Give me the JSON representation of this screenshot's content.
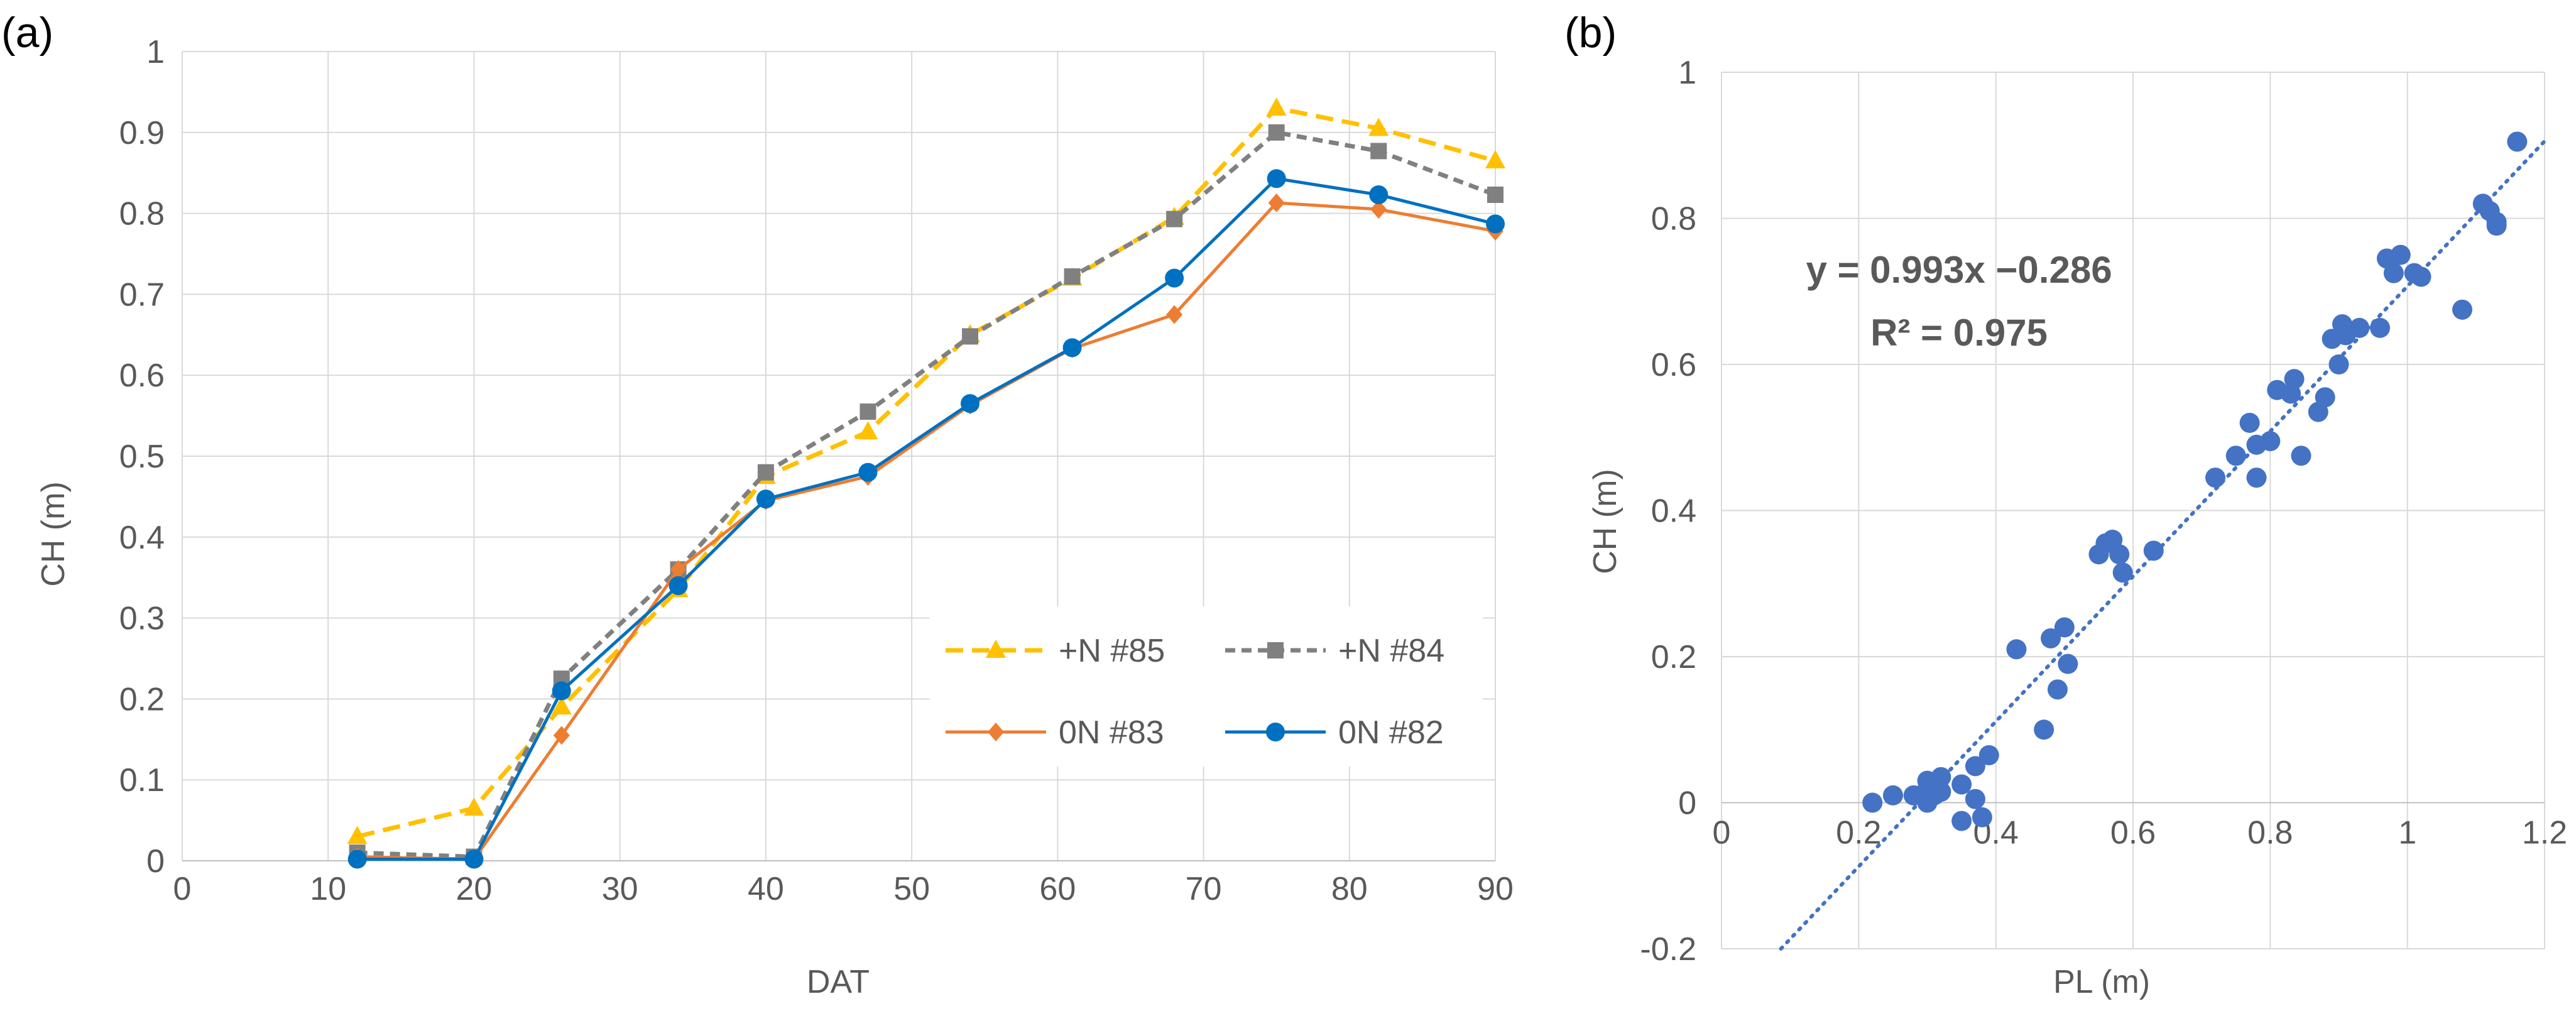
{
  "chart_data": [
    {
      "type": "line",
      "panel_label": "(a)",
      "xlabel": "DAT",
      "ylabel": "CH (m)",
      "xlim": [
        0,
        90
      ],
      "ylim": [
        0,
        1
      ],
      "x_ticks": [
        0,
        10,
        20,
        30,
        40,
        50,
        60,
        70,
        80,
        90
      ],
      "y_ticks": [
        0,
        0.1,
        0.2,
        0.3,
        0.4,
        0.5,
        0.6,
        0.7,
        0.8,
        0.9,
        1
      ],
      "x_tick_labels": [
        "0",
        "10",
        "20",
        "30",
        "40",
        "50",
        "60",
        "70",
        "80",
        "90"
      ],
      "y_tick_labels": [
        "0",
        "0.1",
        "0.2",
        "0.3",
        "0.4",
        "0.5",
        "0.6",
        "0.7",
        "0.8",
        "0.9",
        "1"
      ],
      "grid": true,
      "legend_position": "bottom-right",
      "x": [
        12,
        20,
        26,
        34,
        40,
        47,
        54,
        61,
        68,
        75,
        82,
        90
      ],
      "series": [
        {
          "name": "+N #85",
          "color": "#FFC000",
          "marker": "triangle",
          "dash": "dashed",
          "values": [
            0.03,
            0.065,
            0.19,
            0.335,
            0.475,
            0.53,
            0.65,
            0.72,
            0.795,
            0.93,
            0.905,
            0.865
          ]
        },
        {
          "name": "+N #84",
          "color": "#808080",
          "marker": "square",
          "dash": "dashed",
          "values": [
            0.01,
            0.005,
            0.225,
            0.36,
            0.48,
            0.555,
            0.648,
            0.722,
            0.793,
            0.9,
            0.877,
            0.823
          ]
        },
        {
          "name": "0N #83",
          "color": "#ED7D31",
          "marker": "diamond",
          "dash": "solid",
          "values": [
            0.005,
            0.002,
            0.155,
            0.36,
            0.445,
            0.475,
            0.563,
            0.633,
            0.675,
            0.813,
            0.805,
            0.778
          ]
        },
        {
          "name": "0N #82",
          "color": "#0070C0",
          "marker": "circle",
          "dash": "solid",
          "values": [
            0.002,
            0.002,
            0.21,
            0.34,
            0.447,
            0.48,
            0.565,
            0.634,
            0.72,
            0.843,
            0.823,
            0.787
          ]
        }
      ]
    },
    {
      "type": "scatter",
      "panel_label": "(b)",
      "xlabel": "PL (m)",
      "ylabel": "CH (m)",
      "xlim": [
        0,
        1.2
      ],
      "ylim": [
        -0.2,
        1
      ],
      "x_ticks": [
        0,
        0.2,
        0.4,
        0.6,
        0.8,
        1,
        1.2
      ],
      "y_ticks": [
        -0.2,
        0,
        0.2,
        0.4,
        0.6,
        0.8,
        1
      ],
      "x_tick_labels": [
        "0",
        "0.2",
        "0.4",
        "0.6",
        "0.8",
        "1",
        "1.2"
      ],
      "y_tick_labels": [
        "-0.2",
        "0",
        "0.2",
        "0.4",
        "0.6",
        "0.8",
        "1"
      ],
      "grid": true,
      "marker_color": "#4472C4",
      "trendline": {
        "slope": 0.993,
        "intercept": -0.286,
        "color": "#4472C4",
        "style": "dotted"
      },
      "equation": "y = 0.993x −0.286",
      "r_squared": "R² = 0.975",
      "points": [
        [
          0.22,
          0.0
        ],
        [
          0.25,
          0.01
        ],
        [
          0.28,
          0.01
        ],
        [
          0.29,
          0.01
        ],
        [
          0.3,
          0.0
        ],
        [
          0.3,
          0.03
        ],
        [
          0.31,
          0.01
        ],
        [
          0.31,
          0.02
        ],
        [
          0.32,
          0.035
        ],
        [
          0.32,
          0.015
        ],
        [
          0.35,
          -0.025
        ],
        [
          0.35,
          0.025
        ],
        [
          0.37,
          0.005
        ],
        [
          0.37,
          0.05
        ],
        [
          0.38,
          -0.02
        ],
        [
          0.39,
          0.065
        ],
        [
          0.43,
          0.21
        ],
        [
          0.47,
          0.1
        ],
        [
          0.48,
          0.225
        ],
        [
          0.49,
          0.155
        ],
        [
          0.5,
          0.24
        ],
        [
          0.505,
          0.19
        ],
        [
          0.55,
          0.34
        ],
        [
          0.56,
          0.355
        ],
        [
          0.57,
          0.36
        ],
        [
          0.58,
          0.34
        ],
        [
          0.585,
          0.315
        ],
        [
          0.63,
          0.345
        ],
        [
          0.72,
          0.445
        ],
        [
          0.75,
          0.475
        ],
        [
          0.77,
          0.52
        ],
        [
          0.78,
          0.445
        ],
        [
          0.78,
          0.49
        ],
        [
          0.8,
          0.495
        ],
        [
          0.81,
          0.565
        ],
        [
          0.83,
          0.56
        ],
        [
          0.835,
          0.58
        ],
        [
          0.845,
          0.475
        ],
        [
          0.87,
          0.535
        ],
        [
          0.88,
          0.555
        ],
        [
          0.89,
          0.635
        ],
        [
          0.9,
          0.6
        ],
        [
          0.905,
          0.655
        ],
        [
          0.91,
          0.64
        ],
        [
          0.93,
          0.65
        ],
        [
          0.96,
          0.65
        ],
        [
          0.97,
          0.745
        ],
        [
          0.98,
          0.725
        ],
        [
          0.99,
          0.75
        ],
        [
          1.01,
          0.725
        ],
        [
          1.02,
          0.72
        ],
        [
          1.08,
          0.675
        ],
        [
          1.11,
          0.82
        ],
        [
          1.12,
          0.81
        ],
        [
          1.13,
          0.795
        ],
        [
          1.13,
          0.79
        ],
        [
          1.16,
          0.905
        ]
      ]
    }
  ]
}
